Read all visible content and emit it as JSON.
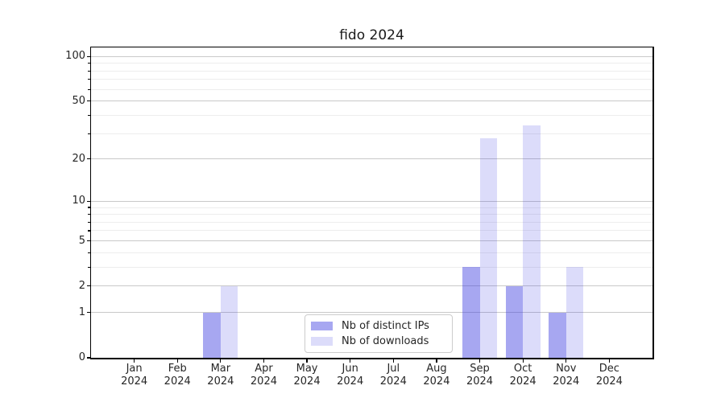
{
  "title": "fido 2024",
  "colors": {
    "bar_ips_rendered": "#a7a7f1",
    "bar_downloads_rendered": "#dcdcf9",
    "bar_ips_alpha": "rgba(60,60,225,0.45)",
    "bar_downloads_alpha": "rgba(60,60,225,0.18)",
    "grid_major": "#c9c9c9",
    "grid_minor": "#ededed",
    "axis": "#000000",
    "text": "#262626",
    "legend_border": "#cccccc"
  },
  "chart_data": {
    "type": "bar",
    "title": "fido 2024",
    "categories": [
      "Jan",
      "Feb",
      "Mar",
      "Apr",
      "May",
      "Jun",
      "Jul",
      "Aug",
      "Sep",
      "Oct",
      "Nov",
      "Dec"
    ],
    "category_sublabel": "2024",
    "series": [
      {
        "name": "Nb of distinct IPs",
        "color_key": "ips",
        "values": [
          0,
          0,
          1,
          0,
          0,
          0,
          0,
          0,
          3,
          2,
          1,
          0
        ]
      },
      {
        "name": "Nb of downloads",
        "color_key": "downloads",
        "values": [
          0,
          0,
          2,
          0,
          0,
          0,
          0,
          0,
          28,
          34,
          3,
          0
        ]
      }
    ],
    "xlabel": "",
    "ylabel": "",
    "yscale": "log1p",
    "ylim": [
      0,
      115
    ],
    "yticks_major": [
      0,
      1,
      2,
      5,
      10,
      20,
      50,
      100
    ],
    "yticks_minor": [
      3,
      4,
      6,
      7,
      8,
      9,
      30,
      40,
      60,
      70,
      80,
      90
    ],
    "grid": true,
    "legend_position": "lower-center-inside"
  }
}
